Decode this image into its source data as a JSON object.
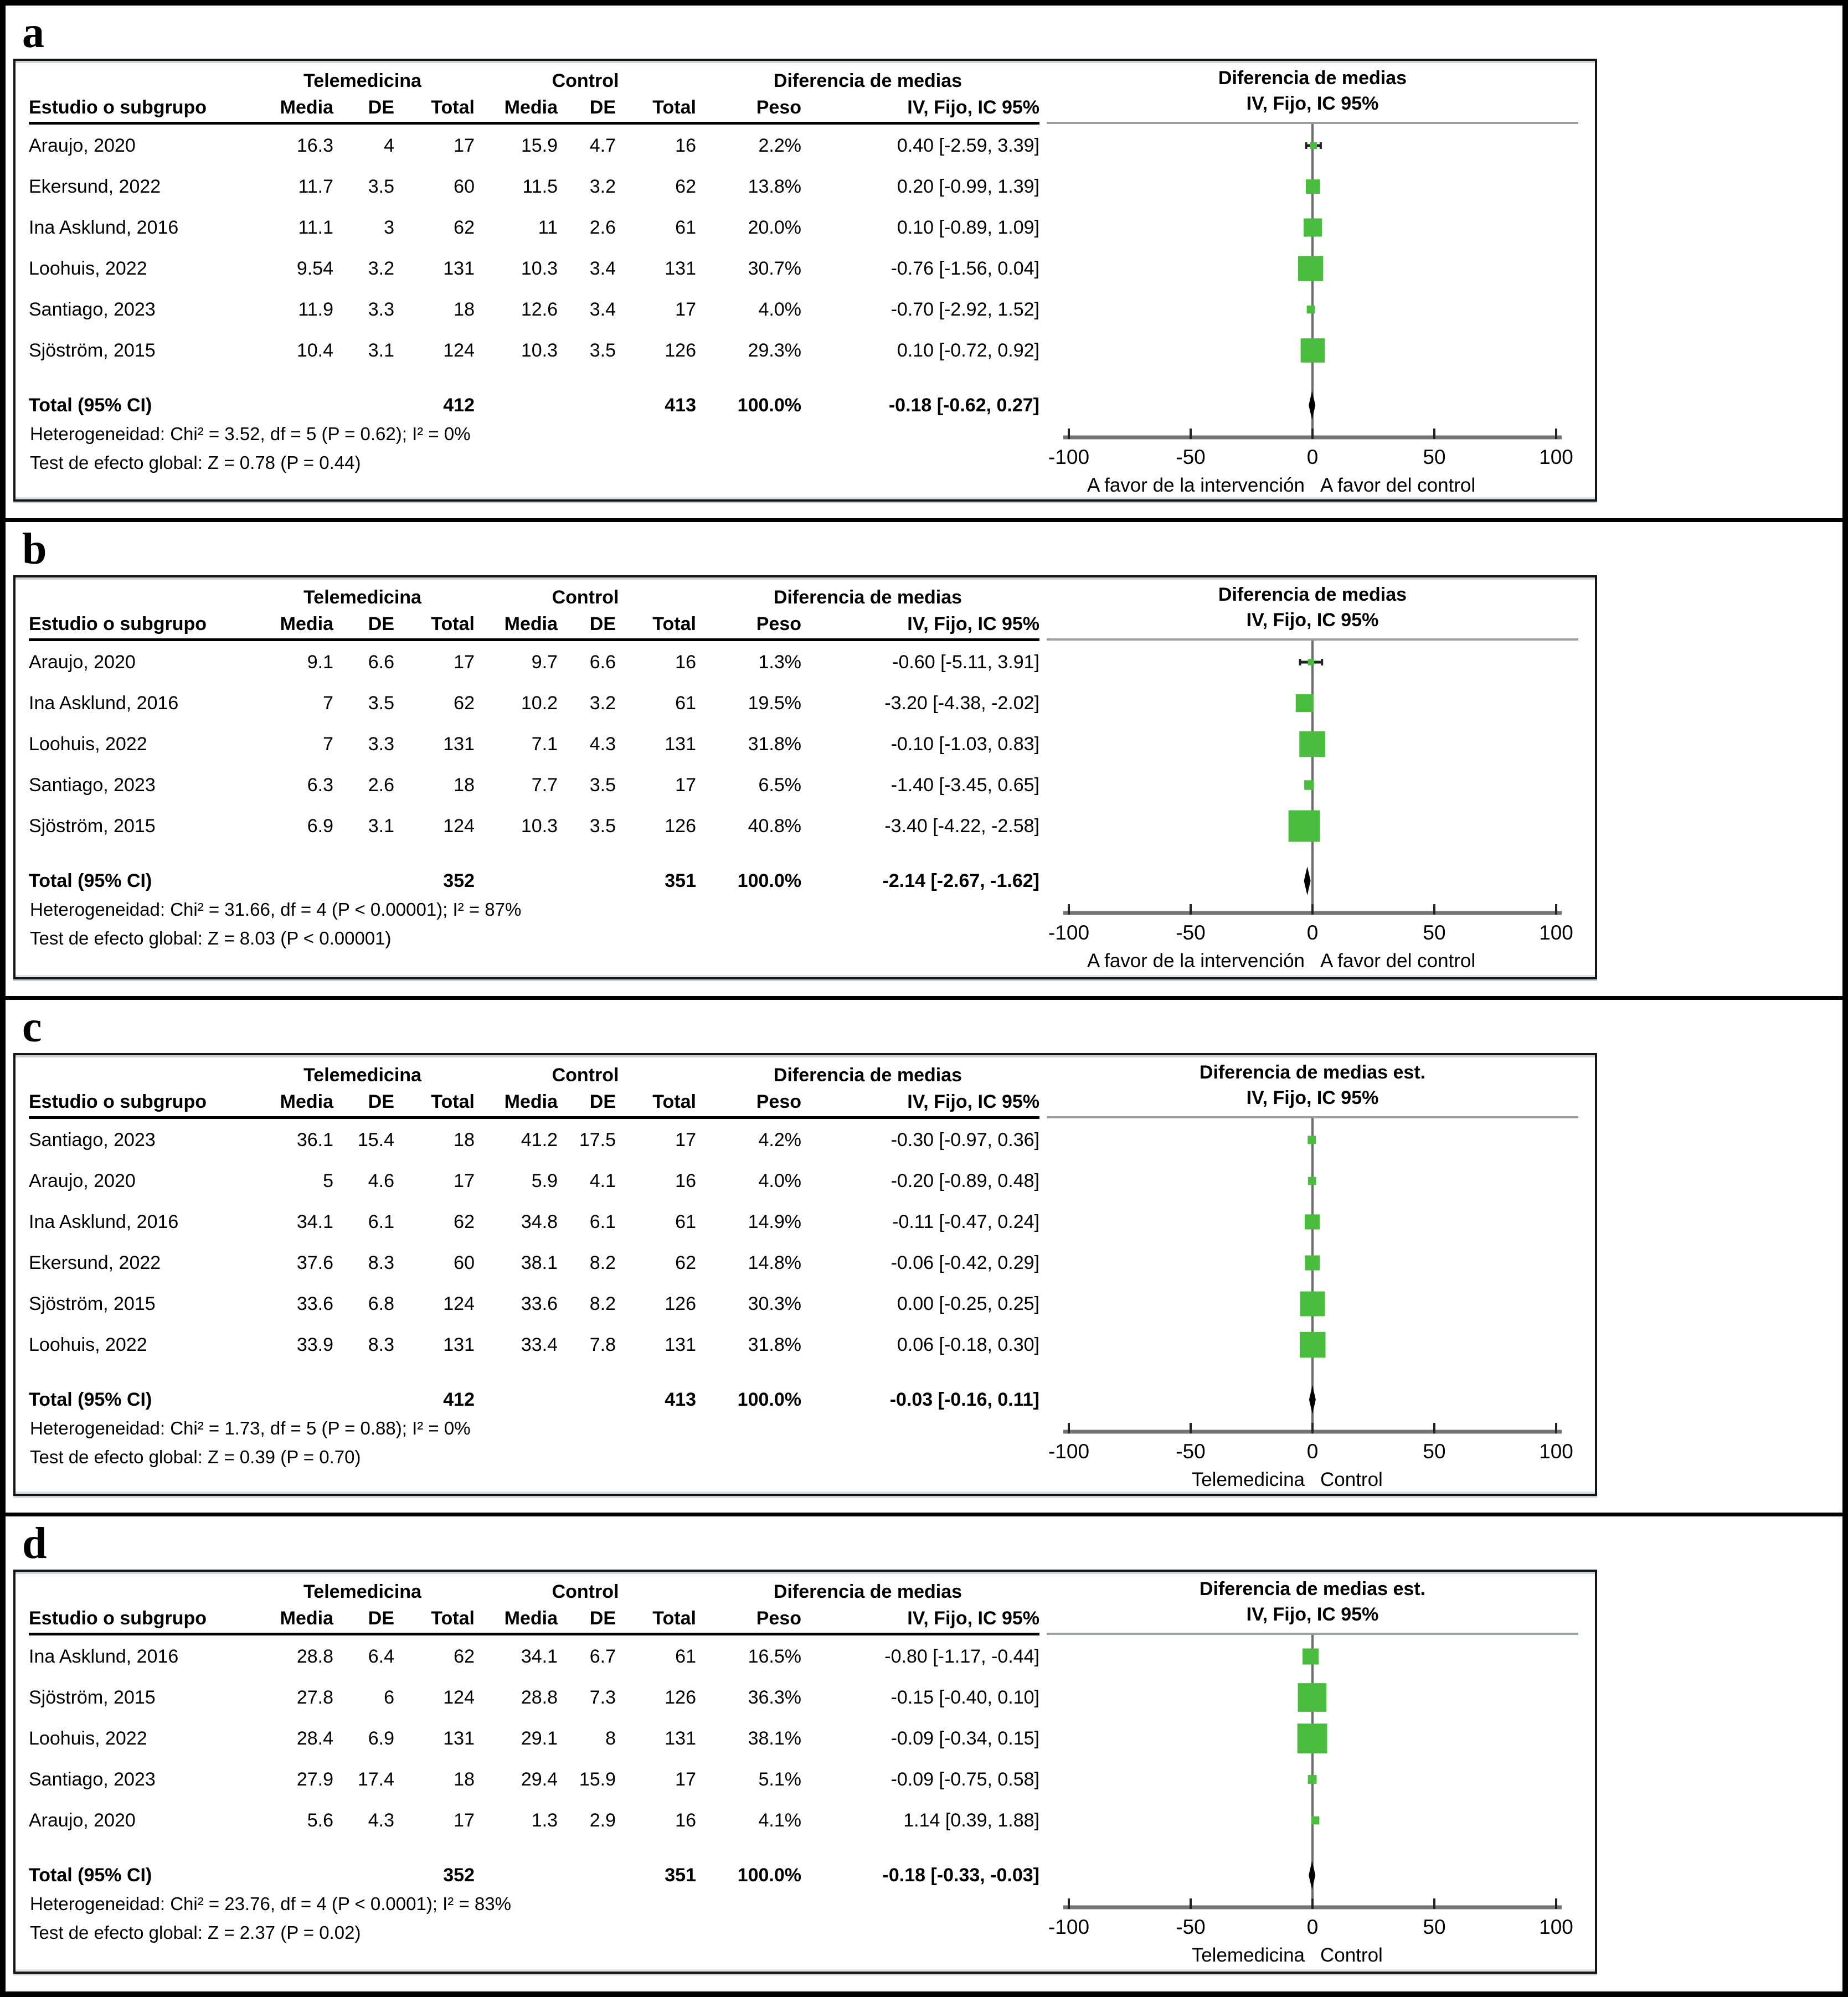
{
  "shared": {
    "group_telemedicina": "Telemedicina",
    "group_control": "Control",
    "group_diff": "Diferencia de medias",
    "col_study": "Estudio o subgrupo",
    "col_media": "Media",
    "col_de": "DE",
    "col_total": "Total",
    "col_peso": "Peso",
    "col_ci": "IV, Fijo, IC 95%"
  },
  "colors": {
    "marker_green": "#4bbd3e",
    "diamond_black": "#000000",
    "axis_gray": "#757575",
    "zero_line_gray": "#6b6b6b",
    "plot_rule_gray": "#9aa0a4"
  },
  "chart_data": [
    {
      "type": "scatter",
      "panel_label": "a",
      "plot_title_1": "Diferencia de medias",
      "plot_title_2": "IV, Fijo, IC 95%",
      "xlim": [
        -110,
        110
      ],
      "x_ticks": [
        -100,
        -50,
        0,
        50,
        100
      ],
      "x_left_label": "A favor de la intervención",
      "x_right_label": "A favor del control",
      "rows": [
        {
          "study": "Araujo, 2020",
          "m1": "16.3",
          "de1": "4",
          "t1": "17",
          "m2": "15.9",
          "de2": "4.7",
          "t2": "16",
          "peso": "2.2%",
          "ci": "0.40 [-2.59, 3.39]",
          "est": 0.4,
          "lo": -2.59,
          "hi": 3.39,
          "weight": 2.2
        },
        {
          "study": "Ekersund, 2022",
          "m1": "11.7",
          "de1": "3.5",
          "t1": "60",
          "m2": "11.5",
          "de2": "3.2",
          "t2": "62",
          "peso": "13.8%",
          "ci": "0.20 [-0.99, 1.39]",
          "est": 0.2,
          "lo": -0.99,
          "hi": 1.39,
          "weight": 13.8
        },
        {
          "study": "Ina Asklund, 2016",
          "m1": "11.1",
          "de1": "3",
          "t1": "62",
          "m2": "11",
          "de2": "2.6",
          "t2": "61",
          "peso": "20.0%",
          "ci": "0.10 [-0.89, 1.09]",
          "est": 0.1,
          "lo": -0.89,
          "hi": 1.09,
          "weight": 20.0
        },
        {
          "study": "Loohuis, 2022",
          "m1": "9.54",
          "de1": "3.2",
          "t1": "131",
          "m2": "10.3",
          "de2": "3.4",
          "t2": "131",
          "peso": "30.7%",
          "ci": "-0.76 [-1.56, 0.04]",
          "est": -0.76,
          "lo": -1.56,
          "hi": 0.04,
          "weight": 30.7
        },
        {
          "study": "Santiago, 2023",
          "m1": "11.9",
          "de1": "3.3",
          "t1": "18",
          "m2": "12.6",
          "de2": "3.4",
          "t2": "17",
          "peso": "4.0%",
          "ci": "-0.70 [-2.92, 1.52]",
          "est": -0.7,
          "lo": -2.92,
          "hi": 1.52,
          "weight": 4.0
        },
        {
          "study": "Sjöström, 2015",
          "m1": "10.4",
          "de1": "3.1",
          "t1": "124",
          "m2": "10.3",
          "de2": "3.5",
          "t2": "126",
          "peso": "29.3%",
          "ci": "0.10 [-0.72, 0.92]",
          "est": 0.1,
          "lo": -0.72,
          "hi": 0.92,
          "weight": 29.3
        }
      ],
      "total": {
        "label": "Total (95% CI)",
        "t1": "412",
        "t2": "413",
        "peso": "100.0%",
        "ci": "-0.18 [-0.62, 0.27]",
        "est": -0.18,
        "lo": -0.62,
        "hi": 0.27
      },
      "heterogeneity": "Heterogeneidad: Chi² = 3.52, df = 5 (P = 0.62); I² = 0%",
      "overall_test": "Test de efecto global:  Z = 0.78 (P = 0.44)"
    },
    {
      "type": "scatter",
      "panel_label": "b",
      "plot_title_1": "Diferencia de medias",
      "plot_title_2": "IV, Fijo, IC 95%",
      "xlim": [
        -110,
        110
      ],
      "x_ticks": [
        -100,
        -50,
        0,
        50,
        100
      ],
      "x_left_label": "A favor de la intervención",
      "x_right_label": "A favor del control",
      "rows": [
        {
          "study": "Araujo, 2020",
          "m1": "9.1",
          "de1": "6.6",
          "t1": "17",
          "m2": "9.7",
          "de2": "6.6",
          "t2": "16",
          "peso": "1.3%",
          "ci": "-0.60 [-5.11, 3.91]",
          "est": -0.6,
          "lo": -5.11,
          "hi": 3.91,
          "weight": 1.3
        },
        {
          "study": "Ina Asklund, 2016",
          "m1": "7",
          "de1": "3.5",
          "t1": "62",
          "m2": "10.2",
          "de2": "3.2",
          "t2": "61",
          "peso": "19.5%",
          "ci": "-3.20 [-4.38, -2.02]",
          "est": -3.2,
          "lo": -4.38,
          "hi": -2.02,
          "weight": 19.5
        },
        {
          "study": "Loohuis, 2022",
          "m1": "7",
          "de1": "3.3",
          "t1": "131",
          "m2": "7.1",
          "de2": "4.3",
          "t2": "131",
          "peso": "31.8%",
          "ci": "-0.10 [-1.03, 0.83]",
          "est": -0.1,
          "lo": -1.03,
          "hi": 0.83,
          "weight": 31.8
        },
        {
          "study": "Santiago, 2023",
          "m1": "6.3",
          "de1": "2.6",
          "t1": "18",
          "m2": "7.7",
          "de2": "3.5",
          "t2": "17",
          "peso": "6.5%",
          "ci": "-1.40 [-3.45, 0.65]",
          "est": -1.4,
          "lo": -3.45,
          "hi": 0.65,
          "weight": 6.5
        },
        {
          "study": "Sjöström, 2015",
          "m1": "6.9",
          "de1": "3.1",
          "t1": "124",
          "m2": "10.3",
          "de2": "3.5",
          "t2": "126",
          "peso": "40.8%",
          "ci": "-3.40 [-4.22, -2.58]",
          "est": -3.4,
          "lo": -4.22,
          "hi": -2.58,
          "weight": 40.8
        }
      ],
      "total": {
        "label": "Total (95% CI)",
        "t1": "352",
        "t2": "351",
        "peso": "100.0%",
        "ci": "-2.14 [-2.67, -1.62]",
        "est": -2.14,
        "lo": -2.67,
        "hi": -1.62
      },
      "heterogeneity": "Heterogeneidad: Chi² = 31.66, df = 4 (P < 0.00001); I² = 87%",
      "overall_test": "Test de efecto global:  Z = 8.03 (P < 0.00001)"
    },
    {
      "type": "scatter",
      "panel_label": "c",
      "plot_title_1": "Diferencia de medias est.",
      "plot_title_2": "IV, Fijo, IC 95%",
      "xlim": [
        -110,
        110
      ],
      "x_ticks": [
        -100,
        -50,
        0,
        50,
        100
      ],
      "x_left_label": "Telemedicina",
      "x_right_label": "Control",
      "rows": [
        {
          "study": "Santiago, 2023",
          "m1": "36.1",
          "de1": "15.4",
          "t1": "18",
          "m2": "41.2",
          "de2": "17.5",
          "t2": "17",
          "peso": "4.2%",
          "ci": "-0.30 [-0.97, 0.36]",
          "est": -0.3,
          "lo": -0.97,
          "hi": 0.36,
          "weight": 4.2
        },
        {
          "study": "Araujo, 2020",
          "m1": "5",
          "de1": "4.6",
          "t1": "17",
          "m2": "5.9",
          "de2": "4.1",
          "t2": "16",
          "peso": "4.0%",
          "ci": "-0.20 [-0.89, 0.48]",
          "est": -0.2,
          "lo": -0.89,
          "hi": 0.48,
          "weight": 4.0
        },
        {
          "study": "Ina Asklund, 2016",
          "m1": "34.1",
          "de1": "6.1",
          "t1": "62",
          "m2": "34.8",
          "de2": "6.1",
          "t2": "61",
          "peso": "14.9%",
          "ci": "-0.11 [-0.47, 0.24]",
          "est": -0.11,
          "lo": -0.47,
          "hi": 0.24,
          "weight": 14.9
        },
        {
          "study": "Ekersund, 2022",
          "m1": "37.6",
          "de1": "8.3",
          "t1": "60",
          "m2": "38.1",
          "de2": "8.2",
          "t2": "62",
          "peso": "14.8%",
          "ci": "-0.06 [-0.42, 0.29]",
          "est": -0.06,
          "lo": -0.42,
          "hi": 0.29,
          "weight": 14.8
        },
        {
          "study": "Sjöström, 2015",
          "m1": "33.6",
          "de1": "6.8",
          "t1": "124",
          "m2": "33.6",
          "de2": "8.2",
          "t2": "126",
          "peso": "30.3%",
          "ci": "0.00 [-0.25, 0.25]",
          "est": 0.0,
          "lo": -0.25,
          "hi": 0.25,
          "weight": 30.3
        },
        {
          "study": "Loohuis, 2022",
          "m1": "33.9",
          "de1": "8.3",
          "t1": "131",
          "m2": "33.4",
          "de2": "7.8",
          "t2": "131",
          "peso": "31.8%",
          "ci": "0.06 [-0.18, 0.30]",
          "est": 0.06,
          "lo": -0.18,
          "hi": 0.3,
          "weight": 31.8
        }
      ],
      "total": {
        "label": "Total (95% CI)",
        "t1": "412",
        "t2": "413",
        "peso": "100.0%",
        "ci": "-0.03 [-0.16, 0.11]",
        "est": -0.03,
        "lo": -0.16,
        "hi": 0.11
      },
      "heterogeneity": "Heterogeneidad: Chi² = 1.73, df = 5 (P = 0.88); I² = 0%",
      "overall_test": "Test de efecto global:  Z = 0.39 (P = 0.70)"
    },
    {
      "type": "scatter",
      "panel_label": "d",
      "plot_title_1": "Diferencia de medias est.",
      "plot_title_2": "IV, Fijo, IC 95%",
      "xlim": [
        -110,
        110
      ],
      "x_ticks": [
        -100,
        -50,
        0,
        50,
        100
      ],
      "x_left_label": "Telemedicina",
      "x_right_label": "Control",
      "rows": [
        {
          "study": "Ina Asklund, 2016",
          "m1": "28.8",
          "de1": "6.4",
          "t1": "62",
          "m2": "34.1",
          "de2": "6.7",
          "t2": "61",
          "peso": "16.5%",
          "ci": "-0.80 [-1.17, -0.44]",
          "est": -0.8,
          "lo": -1.17,
          "hi": -0.44,
          "weight": 16.5
        },
        {
          "study": "Sjöström, 2015",
          "m1": "27.8",
          "de1": "6",
          "t1": "124",
          "m2": "28.8",
          "de2": "7.3",
          "t2": "126",
          "peso": "36.3%",
          "ci": "-0.15 [-0.40, 0.10]",
          "est": -0.15,
          "lo": -0.4,
          "hi": 0.1,
          "weight": 36.3
        },
        {
          "study": "Loohuis, 2022",
          "m1": "28.4",
          "de1": "6.9",
          "t1": "131",
          "m2": "29.1",
          "de2": "8",
          "t2": "131",
          "peso": "38.1%",
          "ci": "-0.09 [-0.34, 0.15]",
          "est": -0.09,
          "lo": -0.34,
          "hi": 0.15,
          "weight": 38.1
        },
        {
          "study": "Santiago, 2023",
          "m1": "27.9",
          "de1": "17.4",
          "t1": "18",
          "m2": "29.4",
          "de2": "15.9",
          "t2": "17",
          "peso": "5.1%",
          "ci": "-0.09 [-0.75, 0.58]",
          "est": -0.09,
          "lo": -0.75,
          "hi": 0.58,
          "weight": 5.1
        },
        {
          "study": "Araujo, 2020",
          "m1": "5.6",
          "de1": "4.3",
          "t1": "17",
          "m2": "1.3",
          "de2": "2.9",
          "t2": "16",
          "peso": "4.1%",
          "ci": "1.14 [0.39, 1.88]",
          "est": 1.14,
          "lo": 0.39,
          "hi": 1.88,
          "weight": 4.1
        }
      ],
      "total": {
        "label": "Total (95% CI)",
        "t1": "352",
        "t2": "351",
        "peso": "100.0%",
        "ci": "-0.18 [-0.33, -0.03]",
        "est": -0.18,
        "lo": -0.33,
        "hi": -0.03
      },
      "heterogeneity": "Heterogeneidad: Chi² = 23.76, df = 4 (P < 0.0001); I² = 83%",
      "overall_test": "Test de efecto global:  Z = 2.37 (P = 0.02)"
    }
  ]
}
